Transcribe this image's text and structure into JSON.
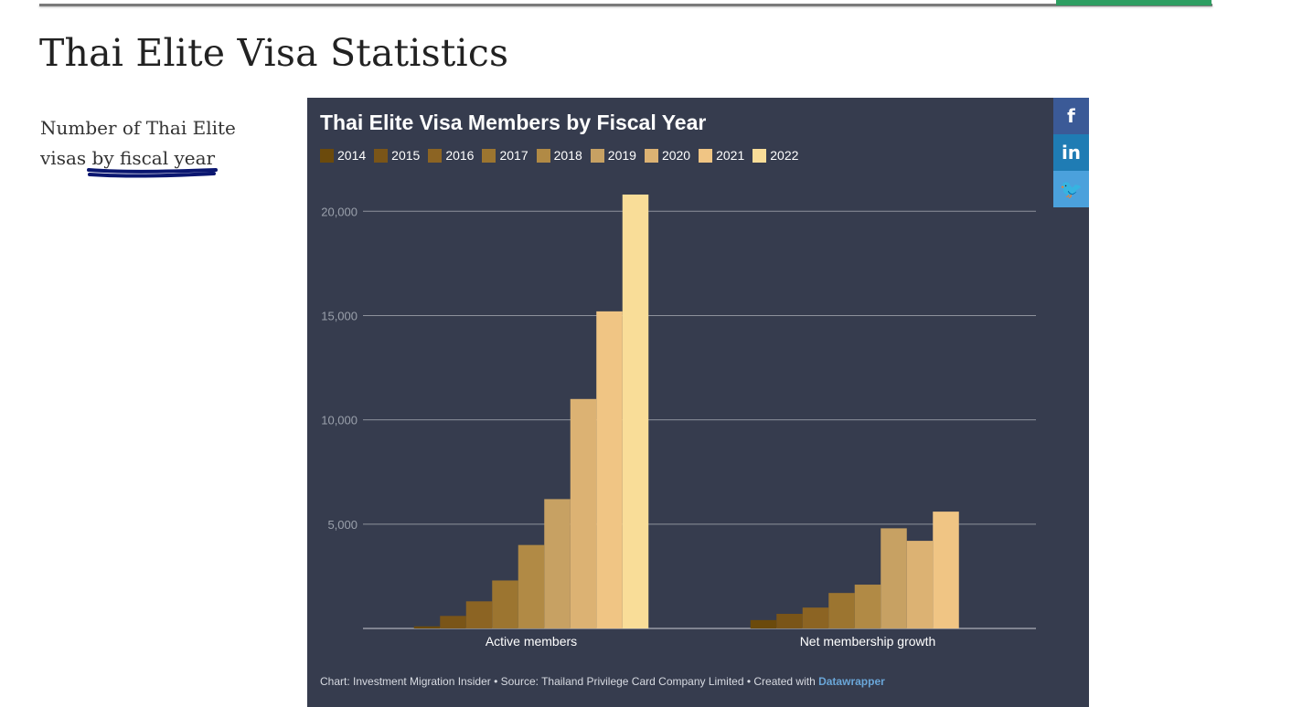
{
  "page": {
    "title": "Thai Elite Visa Statistics",
    "intro_line1": "Number of Thai Elite",
    "intro_line2_a": "visas ",
    "intro_line2_b": "by fiscal year"
  },
  "colors": {
    "chart_bg": "#363c4e",
    "gridline": "#8e929c",
    "axis_text": "#9aa0ab",
    "top_accent": "#2e9e62",
    "scribble": "#0a1670"
  },
  "share": [
    {
      "name": "facebook-icon",
      "glyph": "f",
      "cls": "fb"
    },
    {
      "name": "linkedin-icon",
      "glyph": "in",
      "cls": "li"
    },
    {
      "name": "twitter-icon",
      "glyph": "🐦",
      "cls": "tw"
    }
  ],
  "chart_data": {
    "type": "bar",
    "title": "Thai Elite Visa Members by Fiscal Year",
    "categories": [
      "Active members",
      "Net membership growth"
    ],
    "series": [
      {
        "name": "2014",
        "color": "#6b4a0c",
        "values": [
          100,
          400
        ]
      },
      {
        "name": "2015",
        "color": "#7a5518",
        "values": [
          600,
          700
        ]
      },
      {
        "name": "2016",
        "color": "#8c6423",
        "values": [
          1300,
          1000
        ]
      },
      {
        "name": "2017",
        "color": "#9c7530",
        "values": [
          2300,
          1700
        ]
      },
      {
        "name": "2018",
        "color": "#b18a45",
        "values": [
          4000,
          2100
        ]
      },
      {
        "name": "2019",
        "color": "#c7a163",
        "values": [
          6200,
          4800
        ]
      },
      {
        "name": "2020",
        "color": "#dcb273",
        "values": [
          11000,
          4200
        ]
      },
      {
        "name": "2021",
        "color": "#f0c584",
        "values": [
          15200,
          5600
        ]
      },
      {
        "name": "2022",
        "color": "#f9dd98",
        "values": [
          20800,
          null
        ]
      }
    ],
    "yticks": [
      5000,
      10000,
      15000,
      20000
    ],
    "ytick_labels": [
      "5,000",
      "10,000",
      "15,000",
      "20,000"
    ],
    "ylim": [
      0,
      21500
    ],
    "grid": true,
    "legend": "top-left",
    "footer_text": "Chart: Investment Migration Insider • Source: Thailand Privilege Card Company Limited • Created with ",
    "footer_link": "Datawrapper"
  }
}
